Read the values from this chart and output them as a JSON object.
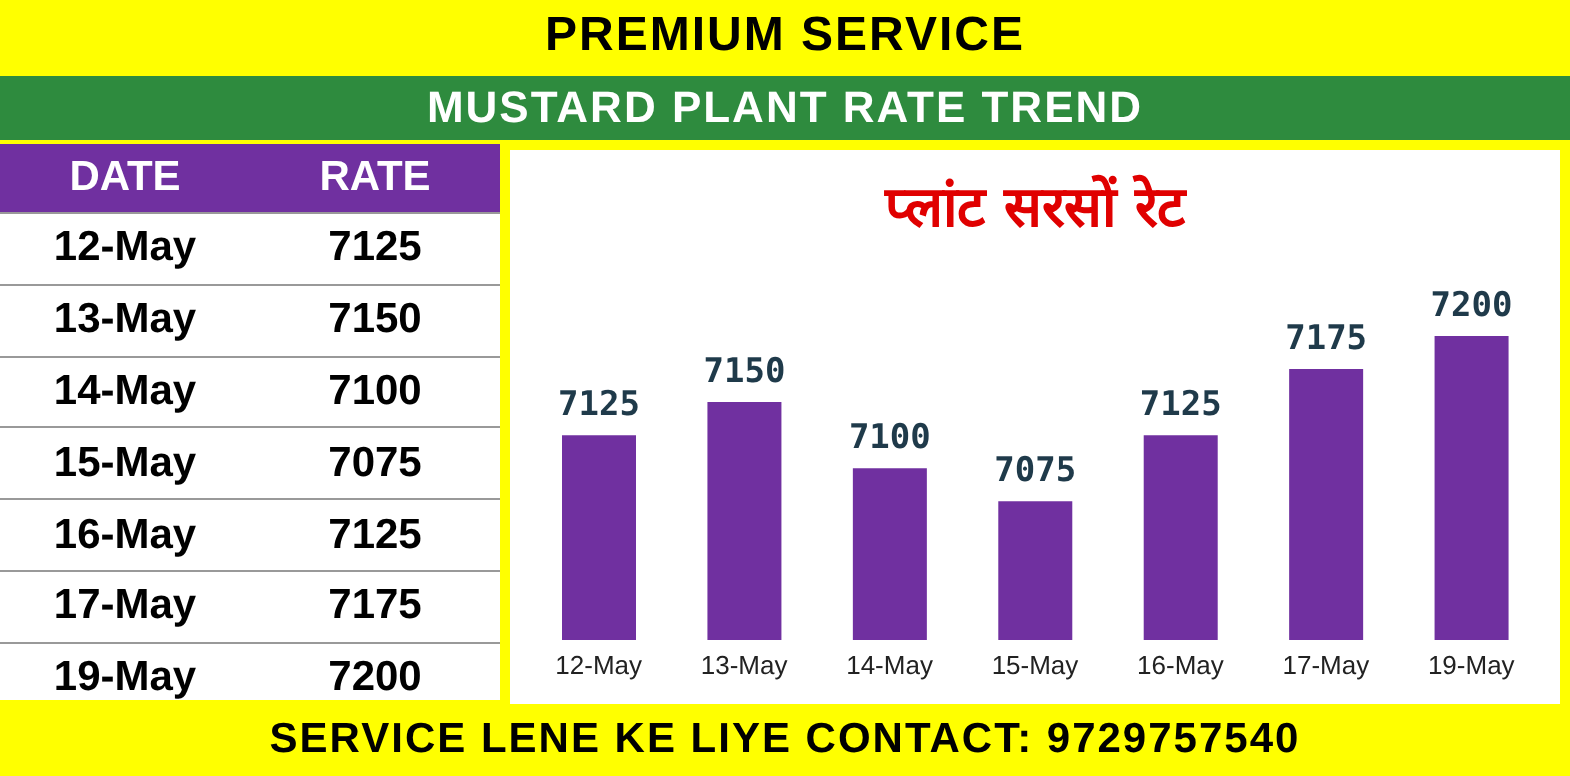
{
  "chart_data": [
    {
      "type": "other",
      "title": "MUSTARD PLANT RATE TREND",
      "annotations": [
        "PREMIUM SERVICE",
        "DATE",
        "RATE",
        "SERVICE LENE KE LIYE CONTACT: 9729757540"
      ],
      "categories": [
        "12-May",
        "13-May",
        "14-May",
        "15-May",
        "16-May",
        "17-May",
        "19-May"
      ],
      "values": [
        7125,
        7150,
        7100,
        7075,
        7125,
        7175,
        7200
      ],
      "data_labels": true
    },
    {
      "type": "bar",
      "title": "प्लांट सरसों रेट",
      "categories": [
        "12-May",
        "13-May",
        "14-May",
        "15-May",
        "16-May",
        "17-May",
        "19-May"
      ],
      "values": [
        7125,
        7150,
        7100,
        7075,
        7125,
        7175,
        7200
      ],
      "color": "#7030a0",
      "ylim": [
        6970,
        7200
      ],
      "data_labels": true
    }
  ]
}
